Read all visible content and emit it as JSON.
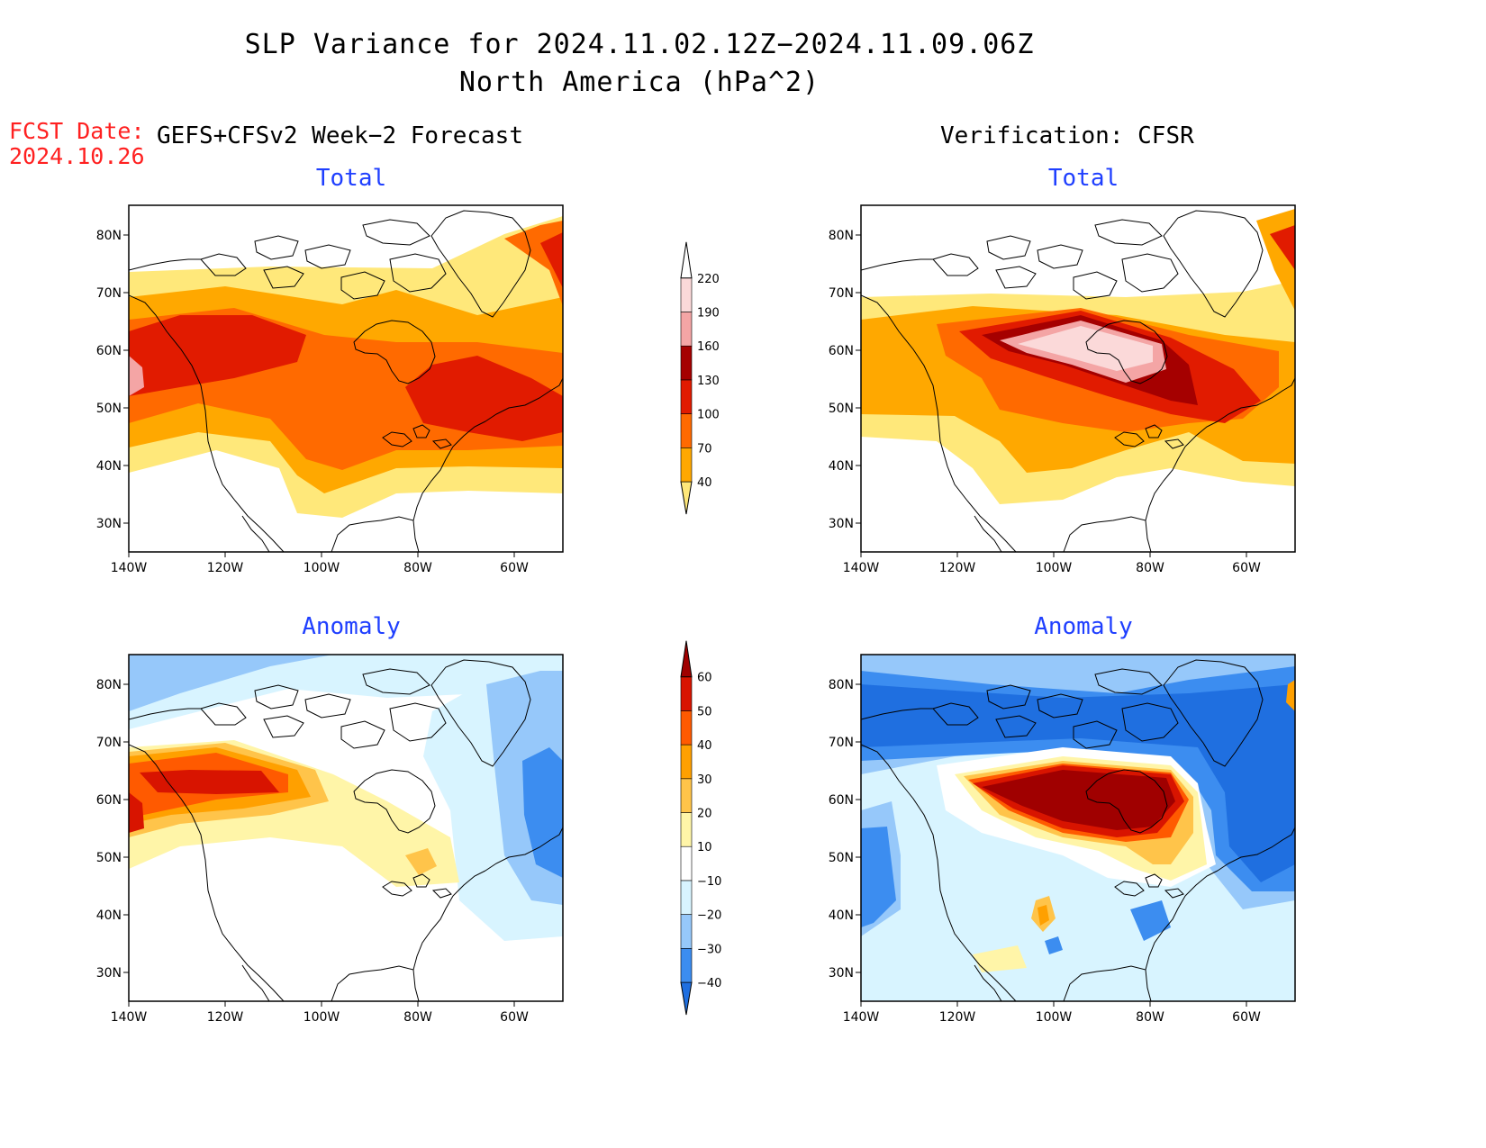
{
  "header": {
    "title_line1": "SLP Variance for 2024.11.02.12Z−2024.11.09.06Z",
    "title_line2": "North America (hPa^2)",
    "fcst_label": "FCST Date:",
    "fcst_date": "2024.10.26",
    "left_heading": "GEFS+CFSv2 Week−2 Forecast",
    "right_heading": "Verification: CFSR"
  },
  "panels": {
    "fc_total_title": "Total",
    "vf_total_title": "Total",
    "fc_anom_title": "Anomaly",
    "vf_anom_title": "Anomaly"
  },
  "axes": {
    "lat_labels": [
      "80N",
      "70N",
      "60N",
      "50N",
      "40N",
      "30N"
    ],
    "lon_labels": [
      "140W",
      "120W",
      "100W",
      "80W",
      "60W"
    ],
    "lat_range": [
      25,
      85
    ],
    "lon_range": [
      -140,
      -50
    ]
  },
  "colorbars": {
    "total": {
      "levels": [
        "40",
        "70",
        "100",
        "130",
        "160",
        "190",
        "220"
      ],
      "colors": [
        "#ffe87a",
        "#ffa800",
        "#ff6a00",
        "#e11b00",
        "#a50000",
        "#f4a5a5",
        "#fbd9d9",
        "#ffffff"
      ]
    },
    "anomaly": {
      "levels": [
        "−40",
        "−30",
        "−20",
        "−10",
        "10",
        "20",
        "30",
        "40",
        "50",
        "60"
      ],
      "colors": [
        "#1f6fe0",
        "#3c8df0",
        "#96c8fa",
        "#d8f4ff",
        "#ffffff",
        "#fff5a8",
        "#ffc44a",
        "#ffa000",
        "#ff5a00",
        "#d81400",
        "#a00000"
      ]
    }
  },
  "colors": {
    "title_blue": "#1f3fff",
    "fcst_red": "#ff2020"
  }
}
